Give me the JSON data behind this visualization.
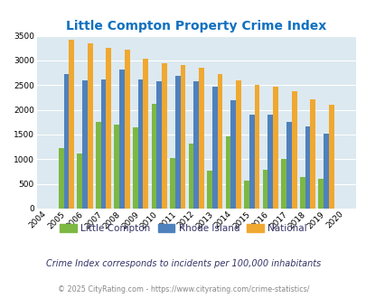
{
  "title": "Little Compton Property Crime Index",
  "years": [
    2004,
    2005,
    2006,
    2007,
    2008,
    2009,
    2010,
    2011,
    2012,
    2013,
    2014,
    2015,
    2016,
    2017,
    2018,
    2019,
    2020
  ],
  "little_compton": [
    0,
    1220,
    1120,
    1760,
    1700,
    1650,
    2130,
    1030,
    1320,
    760,
    1460,
    560,
    780,
    1000,
    640,
    610,
    0
  ],
  "rhode_island": [
    0,
    2720,
    2600,
    2620,
    2820,
    2610,
    2580,
    2680,
    2580,
    2460,
    2190,
    1900,
    1900,
    1760,
    1660,
    1520,
    0
  ],
  "national": [
    0,
    3420,
    3340,
    3260,
    3210,
    3040,
    2950,
    2910,
    2860,
    2730,
    2600,
    2500,
    2460,
    2370,
    2210,
    2110,
    0
  ],
  "bar_width": 0.28,
  "color_lc": "#7db843",
  "color_ri": "#4f81bd",
  "color_nat": "#f0a830",
  "bg_color": "#dce9f0",
  "ylim": [
    0,
    3500
  ],
  "yticks": [
    0,
    500,
    1000,
    1500,
    2000,
    2500,
    3000,
    3500
  ],
  "legend_labels": [
    "Little Compton",
    "Rhode Island",
    "National"
  ],
  "subtitle": "Crime Index corresponds to incidents per 100,000 inhabitants",
  "footer": "© 2025 CityRating.com - https://www.cityrating.com/crime-statistics/",
  "title_color": "#1070c0",
  "subtitle_color": "#333366",
  "footer_color": "#888888"
}
